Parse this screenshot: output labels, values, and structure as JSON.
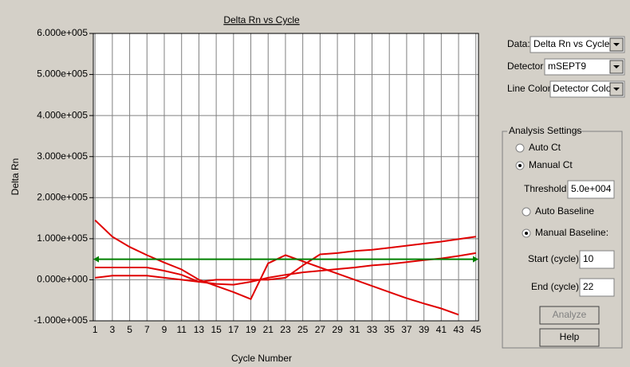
{
  "chart_data": {
    "type": "line",
    "title": "Delta Rn vs Cycle",
    "x_label": "Cycle Number",
    "y_label": "Delta Rn",
    "x": [
      1,
      3,
      5,
      7,
      9,
      11,
      13,
      15,
      17,
      19,
      21,
      23,
      25,
      27,
      29,
      31,
      33,
      35,
      37,
      39,
      41,
      43,
      45
    ],
    "series": [
      {
        "color": "#e00000",
        "values": [
          145000,
          105000,
          80000,
          60000,
          42000,
          25000,
          0,
          -15000,
          -30000,
          -47000,
          40000,
          60000,
          45000,
          30000,
          15000,
          0,
          -15000,
          -30000,
          -45000,
          -58000,
          -70000,
          -85000,
          null
        ]
      },
      {
        "color": "#e00000",
        "values": [
          30000,
          30000,
          30000,
          30000,
          22000,
          12000,
          -5000,
          -10000,
          -12000,
          -5000,
          5000,
          12000,
          18000,
          22000,
          26000,
          30000,
          35000,
          38000,
          43000,
          48000,
          52000,
          58000,
          65000
        ]
      },
      {
        "color": "#e00000",
        "values": [
          5000,
          10000,
          10000,
          10000,
          5000,
          0,
          -5000,
          0,
          0,
          0,
          0,
          5000,
          35000,
          62000,
          65000,
          70000,
          73000,
          78000,
          83000,
          88000,
          93000,
          99000,
          105000
        ]
      }
    ],
    "threshold": 50000,
    "threshold_color": "#008000",
    "xlim": [
      0.8,
      45.3
    ],
    "ylim": [
      -100000,
      600000
    ],
    "xticks": [
      1,
      3,
      5,
      7,
      9,
      11,
      13,
      15,
      17,
      19,
      21,
      23,
      25,
      27,
      29,
      31,
      33,
      35,
      37,
      39,
      41,
      43,
      45
    ],
    "yticks": [
      {
        "value": -100000,
        "label": "-1.000e+005"
      },
      {
        "value": 0,
        "label": "0.000e+000"
      },
      {
        "value": 100000,
        "label": "1.000e+005"
      },
      {
        "value": 200000,
        "label": "2.000e+005"
      },
      {
        "value": 300000,
        "label": "3.000e+005"
      },
      {
        "value": 400000,
        "label": "4.000e+005"
      },
      {
        "value": 500000,
        "label": "5.000e+005"
      },
      {
        "value": 600000,
        "label": "6.000e+005"
      }
    ],
    "grid": true
  },
  "controls": {
    "data_label": "Data:",
    "data_value": "Delta Rn vs Cycle",
    "detector_label": "Detector:",
    "detector_value": "mSEPT9",
    "line_color_label": "Line Color:",
    "line_color_value": "Detector Color"
  },
  "analysis_settings": {
    "title": "Analysis Settings",
    "auto_ct": "Auto Ct",
    "manual_ct": "Manual Ct",
    "threshold_label": "Threshold:",
    "threshold_value": "5.0e+004",
    "auto_baseline": "Auto Baseline",
    "manual_baseline": "Manual Baseline:",
    "start_label": "Start (cycle):",
    "start_value": "10",
    "end_label": "End (cycle):",
    "end_value": "22",
    "analyze": "Analyze",
    "help": "Help"
  }
}
